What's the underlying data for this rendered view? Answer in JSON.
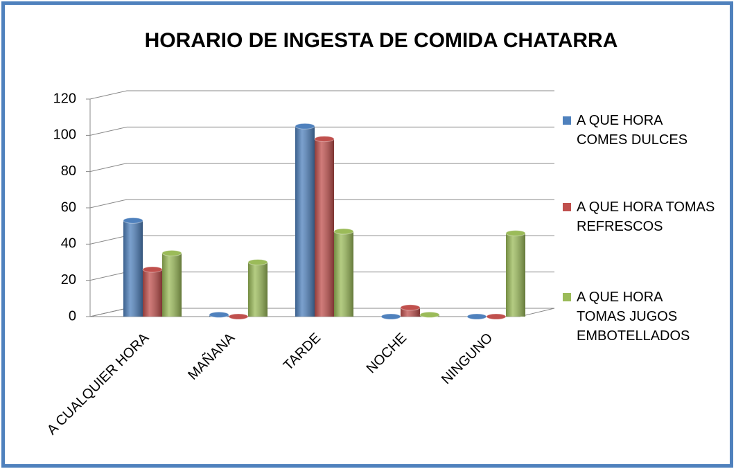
{
  "chart_data": {
    "type": "bar",
    "title": "HORARIO DE INGESTA DE COMIDA CHATARRA",
    "categories": [
      "A CUALQUIER HORA",
      "MAÑANA",
      "TARDE",
      "NOCHE",
      "NINGUNO"
    ],
    "series": [
      {
        "name": "A QUE HORA COMES DULCES",
        "color": "#4f81bd",
        "values": [
          53,
          1,
          105,
          0,
          0
        ]
      },
      {
        "name": "A QUE HORA TOMAS REFRESCOS",
        "color": "#c0504d",
        "values": [
          26,
          0,
          98,
          5,
          0
        ]
      },
      {
        "name": "A QUE HORA TOMAS JUGOS EMBOTELLADOS",
        "color": "#9bbb59",
        "values": [
          35,
          30,
          47,
          1,
          46
        ]
      }
    ],
    "ylim": [
      0,
      120
    ],
    "yticks": [
      0,
      20,
      40,
      60,
      80,
      100,
      120
    ],
    "grid": true,
    "legend": "right"
  }
}
